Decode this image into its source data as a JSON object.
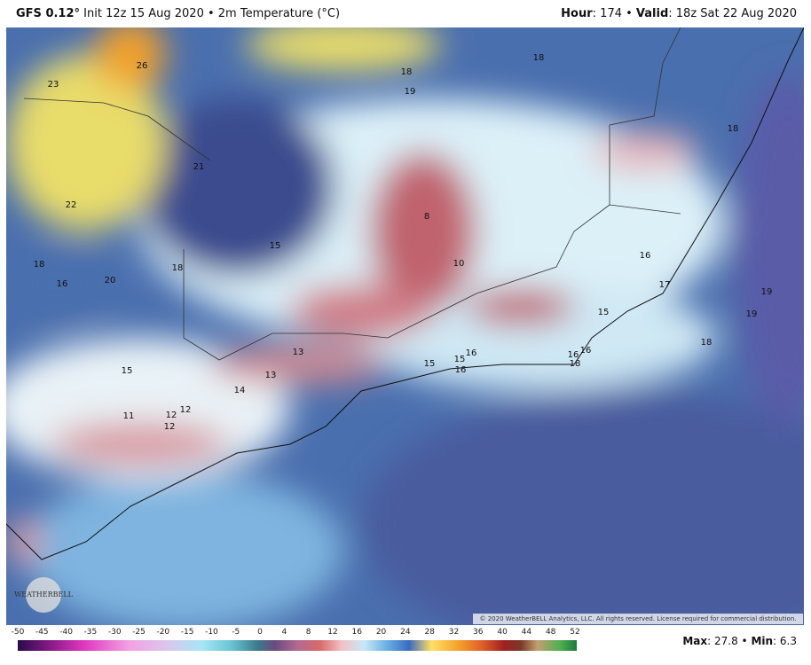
{
  "header": {
    "model": "GFS 0.12°",
    "init": " Init 12z 15 Aug 2020 • 2m Temperature (°C)",
    "hour_label": "Hour",
    "hour": ": 174 • ",
    "valid_label": "Valid",
    "valid": ": 18z Sat 22 Aug 2020"
  },
  "map_labels": [
    26,
    23,
    18,
    19,
    18,
    18,
    21,
    22,
    8,
    15,
    10,
    16,
    18,
    16,
    20,
    18,
    17,
    19,
    19,
    15,
    18,
    13,
    13,
    15,
    14,
    15,
    15,
    16,
    16,
    16,
    16,
    18,
    12,
    12,
    11,
    12
  ],
  "copyright": "© 2020 WeatherBELL Analytics, LLC. All rights reserved. License required for commercial distribution.",
  "logo": "WEATHERBELL",
  "colorbar_ticks": [
    -50,
    -45,
    -40,
    -35,
    -30,
    -25,
    -20,
    -15,
    -10,
    -5,
    0,
    4,
    8,
    12,
    16,
    20,
    24,
    28,
    32,
    36,
    40,
    44,
    48,
    52
  ],
  "stats": {
    "max_label": "Max",
    "max": ": 27.8 • ",
    "min_label": "Min",
    "min": ": 6.3"
  }
}
